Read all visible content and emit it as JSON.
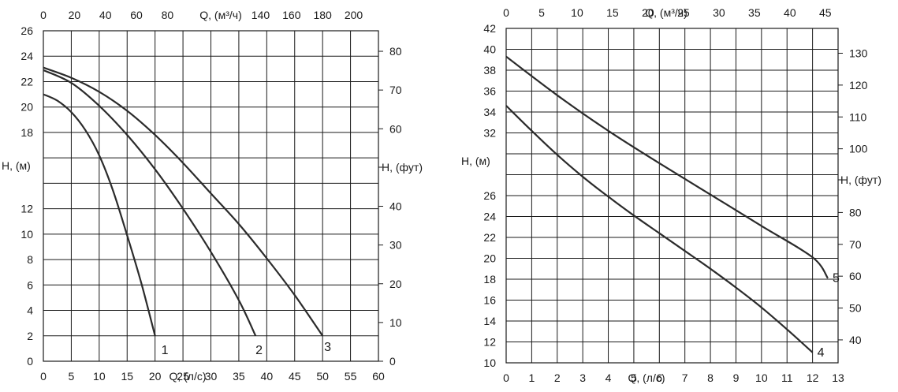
{
  "chart_data": [
    {
      "type": "line",
      "x_bottom": {
        "label": "Q, (л/с)",
        "range": [
          0,
          60
        ],
        "ticks": [
          0,
          5,
          10,
          15,
          20,
          25,
          30,
          35,
          40,
          45,
          50,
          55,
          60
        ]
      },
      "x_top": {
        "label": "Q, (м³/ч)",
        "range": [
          0,
          216
        ],
        "ticks": [
          0,
          20,
          40,
          60,
          80,
          140,
          160,
          180,
          200
        ]
      },
      "y_left": {
        "label": "H, (м)",
        "range": [
          0,
          26
        ],
        "ticks": [
          0,
          2,
          4,
          6,
          8,
          10,
          12,
          18,
          20,
          22,
          24,
          26
        ]
      },
      "y_right": {
        "label": "H, (фут)",
        "range": [
          0,
          85.3
        ],
        "ticks": [
          0,
          10,
          20,
          30,
          40,
          60,
          70,
          80
        ]
      },
      "grid": true,
      "series": [
        {
          "name": "1",
          "points": [
            [
              0,
              21
            ],
            [
              2.5,
              20.5
            ],
            [
              5,
              19.6
            ],
            [
              7.5,
              18.2
            ],
            [
              10,
              16.2
            ],
            [
              12.5,
              13.4
            ],
            [
              15,
              9.9
            ],
            [
              17.5,
              6.2
            ],
            [
              20,
              2
            ]
          ]
        },
        {
          "name": "2",
          "points": [
            [
              0,
              22.9
            ],
            [
              5,
              21.9
            ],
            [
              10,
              20.1
            ],
            [
              15,
              17.8
            ],
            [
              20,
              15.1
            ],
            [
              25,
              12
            ],
            [
              30,
              8.6
            ],
            [
              35,
              4.8
            ],
            [
              38,
              2
            ]
          ]
        },
        {
          "name": "3",
          "points": [
            [
              0,
              23.1
            ],
            [
              5,
              22.3
            ],
            [
              10,
              21.2
            ],
            [
              15,
              19.7
            ],
            [
              20,
              17.8
            ],
            [
              25,
              15.6
            ],
            [
              30,
              13.2
            ],
            [
              35,
              10.8
            ],
            [
              40,
              8.1
            ],
            [
              45,
              5.2
            ],
            [
              50,
              2
            ]
          ]
        }
      ]
    },
    {
      "type": "line",
      "x_bottom": {
        "label": "Q, (л/с)",
        "range": [
          0,
          13
        ],
        "ticks": [
          0,
          1,
          2,
          3,
          4,
          5,
          6,
          7,
          8,
          9,
          10,
          11,
          12,
          13
        ]
      },
      "x_top": {
        "label": "Q, (м³/ч)",
        "range": [
          0,
          46.8
        ],
        "ticks": [
          0,
          5,
          10,
          15,
          20,
          25,
          30,
          35,
          40,
          45
        ]
      },
      "y_left": {
        "label": "H, (м)",
        "range": [
          10,
          42
        ],
        "ticks": [
          10,
          12,
          14,
          16,
          18,
          20,
          22,
          24,
          26,
          32,
          34,
          36,
          38,
          40,
          42
        ]
      },
      "y_right": {
        "label": "H, (фут)",
        "range": [
          32.8,
          137.8
        ],
        "ticks": [
          40,
          50,
          60,
          70,
          80,
          100,
          110,
          120,
          130
        ]
      },
      "grid": true,
      "series": [
        {
          "name": "4",
          "points": [
            [
              0,
              34.6
            ],
            [
              1,
              32.2
            ],
            [
              2,
              29.9
            ],
            [
              3,
              27.8
            ],
            [
              4,
              25.9
            ],
            [
              5,
              24.1
            ],
            [
              6,
              22.4
            ],
            [
              7,
              20.7
            ],
            [
              8,
              19
            ],
            [
              9,
              17.2
            ],
            [
              10,
              15.3
            ],
            [
              11,
              13.2
            ],
            [
              12,
              11
            ]
          ]
        },
        {
          "name": "5",
          "points": [
            [
              0,
              39.3
            ],
            [
              2,
              35.6
            ],
            [
              4,
              32.2
            ],
            [
              6,
              29.1
            ],
            [
              8,
              26.1
            ],
            [
              10,
              23.1
            ],
            [
              12,
              20.1
            ],
            [
              12.6,
              18.1
            ]
          ]
        }
      ]
    }
  ]
}
